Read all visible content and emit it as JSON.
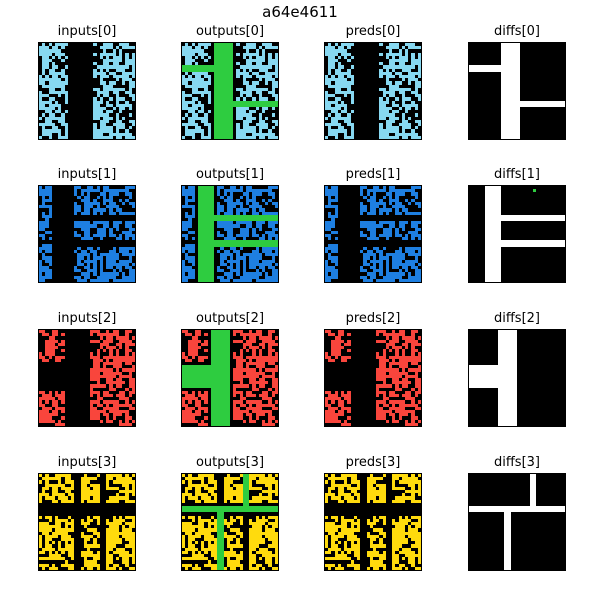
{
  "figure": {
    "title": "a64e4611"
  },
  "palette": {
    "black": "#000000",
    "lightblue": "#87d8f1",
    "blue": "#1e7fe1",
    "red": "#f9453c",
    "yellow": "#ffdb0d",
    "green": "#2ecc40",
    "white": "#ffffff"
  },
  "columns": [
    "inputs",
    "outputs",
    "preds",
    "diffs"
  ],
  "rows": [
    {
      "index": 0,
      "color": "lightblue",
      "titles": {
        "inputs": "inputs[0]",
        "outputs": "outputs[0]",
        "preds": "preds[0]",
        "diffs": "diffs[0]"
      }
    },
    {
      "index": 1,
      "color": "blue",
      "titles": {
        "inputs": "inputs[1]",
        "outputs": "outputs[1]",
        "preds": "preds[1]",
        "diffs": "diffs[1]"
      }
    },
    {
      "index": 2,
      "color": "red",
      "titles": {
        "inputs": "inputs[2]",
        "outputs": "outputs[2]",
        "preds": "preds[2]",
        "diffs": "diffs[2]"
      }
    },
    {
      "index": 3,
      "color": "yellow",
      "titles": {
        "inputs": "inputs[3]",
        "outputs": "outputs[3]",
        "preds": "preds[3]",
        "diffs": "diffs[3]"
      }
    }
  ]
}
